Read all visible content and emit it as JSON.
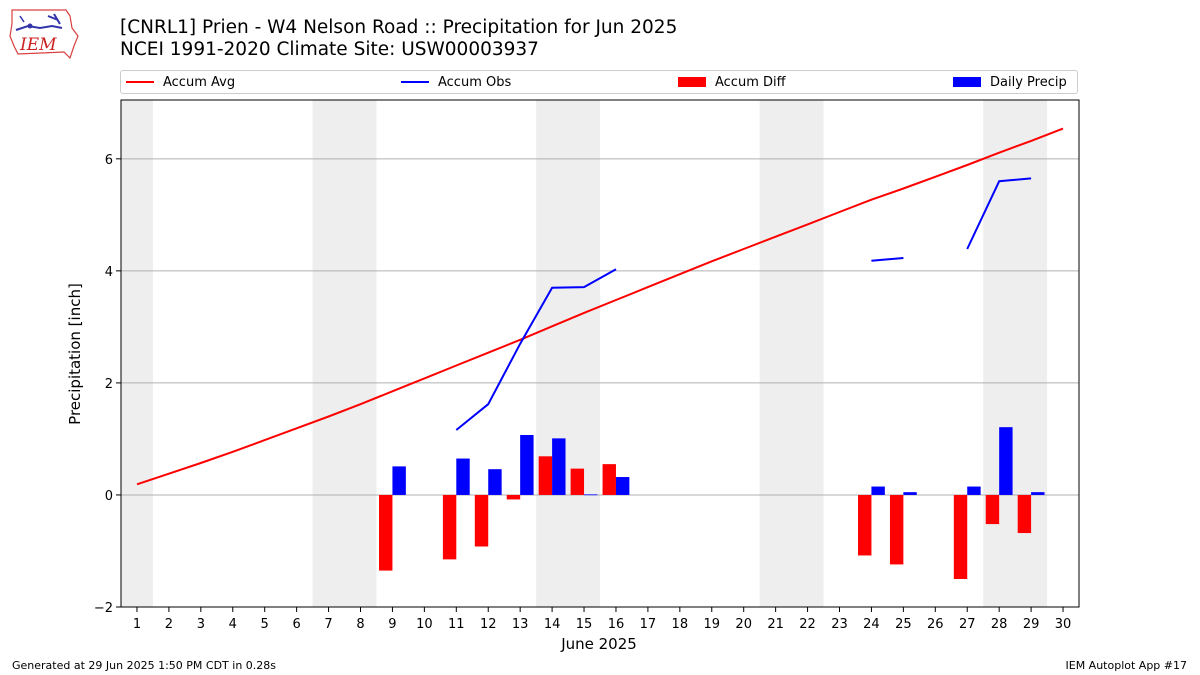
{
  "header": {
    "logo_text": "IEM",
    "title_line1": "[CNRL1] Prien - W4 Nelson Road :: Precipitation for Jun 2025",
    "title_line2": "NCEI 1991-2020 Climate Site: USW00003937"
  },
  "legend": [
    {
      "label": "Accum Avg",
      "kind": "line",
      "color": "#ff0000"
    },
    {
      "label": "Accum Obs",
      "kind": "line",
      "color": "#0000ff"
    },
    {
      "label": "Accum Diff",
      "kind": "box",
      "color": "#ff0000"
    },
    {
      "label": "Daily Precip",
      "kind": "box",
      "color": "#0000ff"
    }
  ],
  "footer": {
    "left": "Generated at 29 Jun 2025 1:50 PM CDT in 0.28s",
    "right": "IEM Autoplot App #17"
  },
  "chart_data": {
    "type": "bar",
    "xlabel": "June 2025",
    "ylabel": "Precipitation [inch]",
    "xlim": [
      0.5,
      30.5
    ],
    "ylim": [
      -2.0,
      7.05
    ],
    "yticks": [
      -2,
      0,
      2,
      4,
      6
    ],
    "categories": [
      "1",
      "2",
      "3",
      "4",
      "5",
      "6",
      "7",
      "8",
      "9",
      "10",
      "11",
      "12",
      "13",
      "14",
      "15",
      "16",
      "17",
      "18",
      "19",
      "20",
      "21",
      "22",
      "23",
      "24",
      "25",
      "26",
      "27",
      "28",
      "29",
      "30"
    ],
    "weekend_shading": [
      [
        0.5,
        1.5
      ],
      [
        6.5,
        8.5
      ],
      [
        13.5,
        15.5
      ],
      [
        20.5,
        22.5
      ],
      [
        27.5,
        29.5
      ]
    ],
    "grid": "horizontal",
    "series": [
      {
        "name": "Accum Avg",
        "type": "line",
        "color": "#ff0000",
        "values": [
          0.19,
          0.38,
          0.57,
          0.77,
          0.98,
          1.19,
          1.4,
          1.62,
          1.85,
          2.08,
          2.31,
          2.54,
          2.77,
          3.01,
          3.25,
          3.48,
          3.71,
          3.94,
          4.17,
          4.39,
          4.61,
          4.83,
          5.05,
          5.27,
          5.47,
          5.68,
          5.89,
          6.11,
          6.32,
          6.54
        ]
      },
      {
        "name": "Accum Obs",
        "type": "line",
        "color": "#0000ff",
        "values": [
          null,
          null,
          null,
          null,
          null,
          null,
          null,
          null,
          null,
          null,
          1.16,
          1.62,
          2.7,
          3.7,
          3.71,
          4.03,
          null,
          null,
          null,
          null,
          null,
          null,
          null,
          4.18,
          4.23,
          null,
          4.39,
          5.6,
          5.65,
          null
        ]
      },
      {
        "name": "Accum Diff",
        "type": "bar",
        "color": "#ff0000",
        "values": [
          null,
          null,
          null,
          null,
          null,
          null,
          null,
          null,
          -1.35,
          null,
          -1.15,
          -0.92,
          -0.08,
          0.69,
          0.47,
          0.55,
          null,
          null,
          null,
          null,
          null,
          null,
          null,
          -1.08,
          -1.24,
          null,
          -1.5,
          -0.52,
          -0.68,
          null
        ]
      },
      {
        "name": "Daily Precip",
        "type": "bar",
        "color": "#0000ff",
        "values": [
          null,
          null,
          null,
          null,
          null,
          null,
          null,
          null,
          0.51,
          null,
          0.65,
          0.46,
          1.07,
          1.01,
          0.01,
          0.32,
          null,
          null,
          null,
          null,
          null,
          null,
          null,
          0.15,
          0.05,
          null,
          0.15,
          1.21,
          0.05,
          null
        ]
      }
    ]
  }
}
